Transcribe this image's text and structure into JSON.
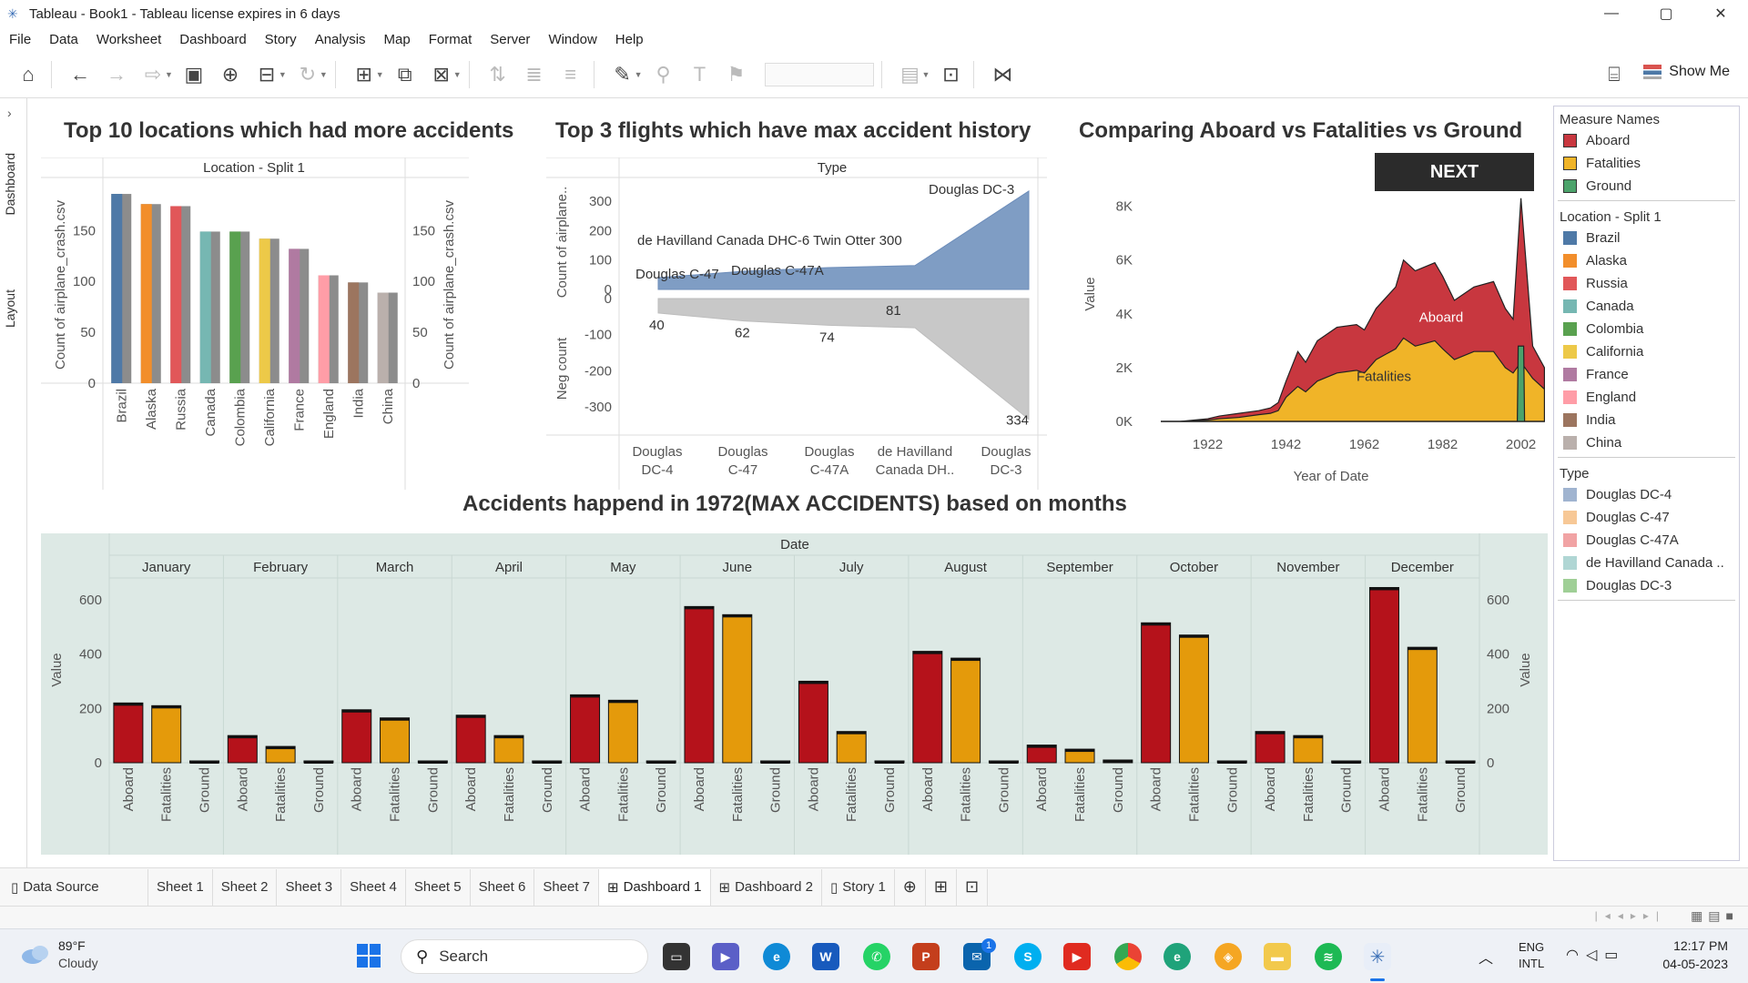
{
  "window": {
    "title": "Tableau - Book1 - Tableau license expires in 6 days",
    "minimize": "—",
    "maximize": "▢",
    "close": "✕"
  },
  "menu": [
    "File",
    "Data",
    "Worksheet",
    "Dashboard",
    "Story",
    "Analysis",
    "Map",
    "Format",
    "Server",
    "Window",
    "Help"
  ],
  "toolbar": {
    "show_me": "Show Me"
  },
  "side_tabs": {
    "dashboard": "Dashboard",
    "layout": "Layout"
  },
  "chart1": {
    "title": "Top 10 locations which had more accidents",
    "header": "Location - Split 1",
    "ylabel": "Count of airplane_crash.csv",
    "ylabel_right": "Count of airplane_crash.csv"
  },
  "chart2": {
    "title": "Top 3 flights which have max accident history",
    "header": "Type",
    "ylabel_top": "Count of airplane..",
    "ylabel_bottom": "Neg count"
  },
  "chart3": {
    "title": "Comparing Aboard vs Fatalities vs Ground",
    "ylabel": "Value",
    "xlabel": "Year of Date",
    "next_button": "NEXT",
    "label_aboard": "Aboard",
    "label_fatalities": "Fatalities"
  },
  "chart4": {
    "title": "Accidents happend in 1972(MAX ACCIDENTS) based on months",
    "header": "Date",
    "ylabel": "Value",
    "ylabel_right": "Value"
  },
  "chart_data": [
    {
      "type": "bar",
      "categories": [
        "Brazil",
        "Alaska",
        "Russia",
        "Canada",
        "Colombia",
        "California",
        "France",
        "England",
        "India",
        "China"
      ],
      "values": [
        186,
        176,
        174,
        149,
        149,
        142,
        132,
        106,
        99,
        89
      ],
      "colors": [
        "#4e79a7",
        "#f28e2b",
        "#e15759",
        "#76b7b2",
        "#59a14f",
        "#edc948",
        "#b07aa1",
        "#ff9da7",
        "#9c755f",
        "#bab0ac"
      ],
      "ylim": [
        0,
        195
      ],
      "yticks": [
        0,
        50,
        100,
        150
      ],
      "ylabel": "Count of airplane_crash.csv"
    },
    {
      "type": "area",
      "categories": [
        "Douglas DC-4",
        "Douglas C-47",
        "Douglas C-47A",
        "de Havilland Canada DH..",
        "Douglas DC-3"
      ],
      "categories_top": [
        "Douglas DC-4",
        "Douglas C-47",
        "Douglas C-47A",
        "de Havilland Canada DHC-6 Twin Otter 300",
        "Douglas DC-3"
      ],
      "values": [
        40,
        62,
        74,
        81,
        334
      ],
      "neg_values": [
        -40,
        -62,
        -74,
        -81,
        -334
      ],
      "value_labels": [
        "40",
        "62",
        "74",
        "81",
        "334"
      ],
      "yticks_top": [
        0,
        100,
        200,
        300
      ],
      "yticks_bottom": [
        0,
        -100,
        -200,
        -300
      ]
    },
    {
      "type": "area",
      "x": [
        1910,
        1915,
        1922,
        1925,
        1930,
        1935,
        1938,
        1940,
        1942,
        1945,
        1947,
        1950,
        1955,
        1960,
        1962,
        1965,
        1970,
        1972,
        1975,
        1980,
        1982,
        1985,
        1990,
        1995,
        1998,
        2000,
        2002,
        2005,
        2008
      ],
      "series": [
        {
          "name": "Aboard",
          "values": [
            0,
            0,
            100,
            200,
            300,
            400,
            500,
            700,
            1500,
            2600,
            2200,
            3000,
            3500,
            3600,
            3400,
            4200,
            5000,
            6000,
            5600,
            5900,
            5400,
            4500,
            5000,
            5200,
            4200,
            3800,
            8300,
            2800,
            2000
          ]
        },
        {
          "name": "Fatalities",
          "values": [
            0,
            0,
            50,
            100,
            150,
            250,
            300,
            400,
            900,
            1300,
            1100,
            1500,
            1800,
            1900,
            1800,
            2300,
            2700,
            3100,
            2800,
            3000,
            2700,
            2300,
            2600,
            2600,
            2000,
            1800,
            2200,
            1600,
            1200
          ]
        },
        {
          "name": "Ground",
          "values": [
            0,
            0,
            0,
            0,
            0,
            0,
            0,
            0,
            0,
            0,
            0,
            0,
            0,
            0,
            0,
            0,
            0,
            0,
            0,
            0,
            0,
            0,
            0,
            0,
            0,
            0,
            2800,
            0,
            0
          ]
        }
      ],
      "xticks": [
        1922,
        1942,
        1962,
        1982,
        2002
      ],
      "yticks": [
        "0K",
        "2K",
        "4K",
        "6K",
        "8K"
      ],
      "ylim": [
        0,
        8800
      ]
    },
    {
      "type": "bar",
      "categories": [
        "January",
        "February",
        "March",
        "April",
        "May",
        "June",
        "July",
        "August",
        "September",
        "October",
        "November",
        "December"
      ],
      "sub": [
        "Aboard",
        "Fatalities",
        "Ground"
      ],
      "series": [
        {
          "name": "Aboard",
          "values": [
            220,
            100,
            195,
            175,
            250,
            575,
            300,
            410,
            65,
            515,
            115,
            645
          ]
        },
        {
          "name": "Fatalities",
          "values": [
            210,
            60,
            165,
            100,
            230,
            545,
            115,
            385,
            50,
            470,
            100,
            425
          ]
        },
        {
          "name": "Ground",
          "values": [
            0,
            0,
            0,
            0,
            0,
            0,
            0,
            0,
            10,
            0,
            0,
            0
          ]
        }
      ],
      "yticks": [
        0,
        200,
        400,
        600
      ],
      "ylim": [
        0,
        660
      ],
      "colors": {
        "Aboard": "#b5121b",
        "Fatalities": "#e49a0b",
        "Ground": "#1f7a3a"
      }
    }
  ],
  "legend": {
    "measure_names": {
      "title": "Measure Names",
      "items": [
        {
          "label": "Aboard",
          "color": "#c8373f"
        },
        {
          "label": "Fatalities",
          "color": "#f0b428"
        },
        {
          "label": "Ground",
          "color": "#4ca36b"
        }
      ]
    },
    "location": {
      "title": "Location - Split 1",
      "items": [
        {
          "label": "Brazil",
          "color": "#4e79a7"
        },
        {
          "label": "Alaska",
          "color": "#f28e2b"
        },
        {
          "label": "Russia",
          "color": "#e15759"
        },
        {
          "label": "Canada",
          "color": "#76b7b2"
        },
        {
          "label": "Colombia",
          "color": "#59a14f"
        },
        {
          "label": "California",
          "color": "#edc948"
        },
        {
          "label": "France",
          "color": "#b07aa1"
        },
        {
          "label": "England",
          "color": "#ff9da7"
        },
        {
          "label": "India",
          "color": "#9c755f"
        },
        {
          "label": "China",
          "color": "#bab0ac"
        }
      ]
    },
    "type": {
      "title": "Type",
      "items": [
        {
          "label": "Douglas DC-4",
          "color": "#a0b4d0"
        },
        {
          "label": "Douglas C-47",
          "color": "#f7c896"
        },
        {
          "label": "Douglas C-47A",
          "color": "#f1a3a4"
        },
        {
          "label": "de Havilland Canada ..",
          "color": "#b0d6d4"
        },
        {
          "label": "Douglas DC-3",
          "color": "#9fcf96"
        }
      ]
    }
  },
  "bottom_tabs": [
    {
      "label": "Data Source"
    },
    {
      "label": "Sheet 1"
    },
    {
      "label": "Sheet 2"
    },
    {
      "label": "Sheet 3"
    },
    {
      "label": "Sheet 4"
    },
    {
      "label": "Sheet 5"
    },
    {
      "label": "Sheet 6"
    },
    {
      "label": "Sheet 7"
    },
    {
      "label": "Dashboard 1",
      "active": true
    },
    {
      "label": "Dashboard 2"
    },
    {
      "label": "Story 1"
    }
  ],
  "taskbar": {
    "weather_temp": "89°F",
    "weather_desc": "Cloudy",
    "search": "Search",
    "lang1": "ENG",
    "lang2": "INTL",
    "time": "12:17 PM",
    "date": "04-05-2023",
    "mail_badge": "1"
  }
}
